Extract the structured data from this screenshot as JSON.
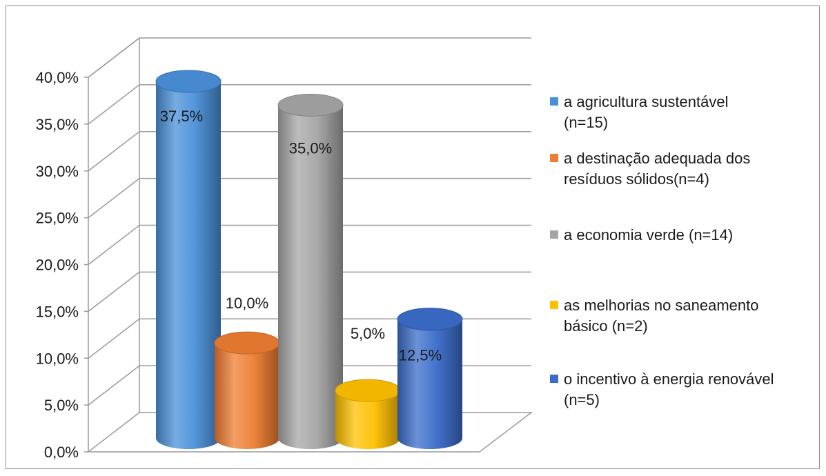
{
  "chart_data": {
    "type": "bar",
    "style": "3d-cylinder",
    "categories": [
      "a agricultura sustentável (n=15)",
      "a destinação adequada dos resíduos sólidos(n=4)",
      "a economia verde (n=14)",
      "as melhorias no saneamento básico (n=2)",
      "o incentivo à energia renovável (n=5)"
    ],
    "values": [
      37.5,
      10.0,
      35.0,
      5.0,
      12.5
    ],
    "data_labels": [
      "37,5%",
      "10,0%",
      "35,0%",
      "5,0%",
      "12,5%"
    ],
    "y_ticks": [
      "0,0%",
      "5,0%",
      "10,0%",
      "15,0%",
      "20,0%",
      "25,0%",
      "30,0%",
      "35,0%",
      "40,0%"
    ],
    "ylim": [
      0,
      40
    ],
    "grid": true,
    "legend_position": "right",
    "legend": [
      {
        "lines": [
          "a agricultura sustentável",
          "(n=15)"
        ],
        "color": "#4a90d9"
      },
      {
        "lines": [
          "a destinação adequada dos",
          "resíduos sólidos(n=4)"
        ],
        "color": "#ed7d31"
      },
      {
        "lines": [
          "a economia verde (n=14)"
        ],
        "color": "#a5a5a5"
      },
      {
        "lines": [
          "as melhorias no saneamento",
          "básico (n=2)"
        ],
        "color": "#ffc000"
      },
      {
        "lines": [
          "o incentivo à energia renovável",
          "(n=5)"
        ],
        "color": "#3a6cc9"
      }
    ],
    "colors": [
      "#4a90d9",
      "#ed7d31",
      "#a5a5a5",
      "#ffc000",
      "#3a6cc9"
    ]
  }
}
